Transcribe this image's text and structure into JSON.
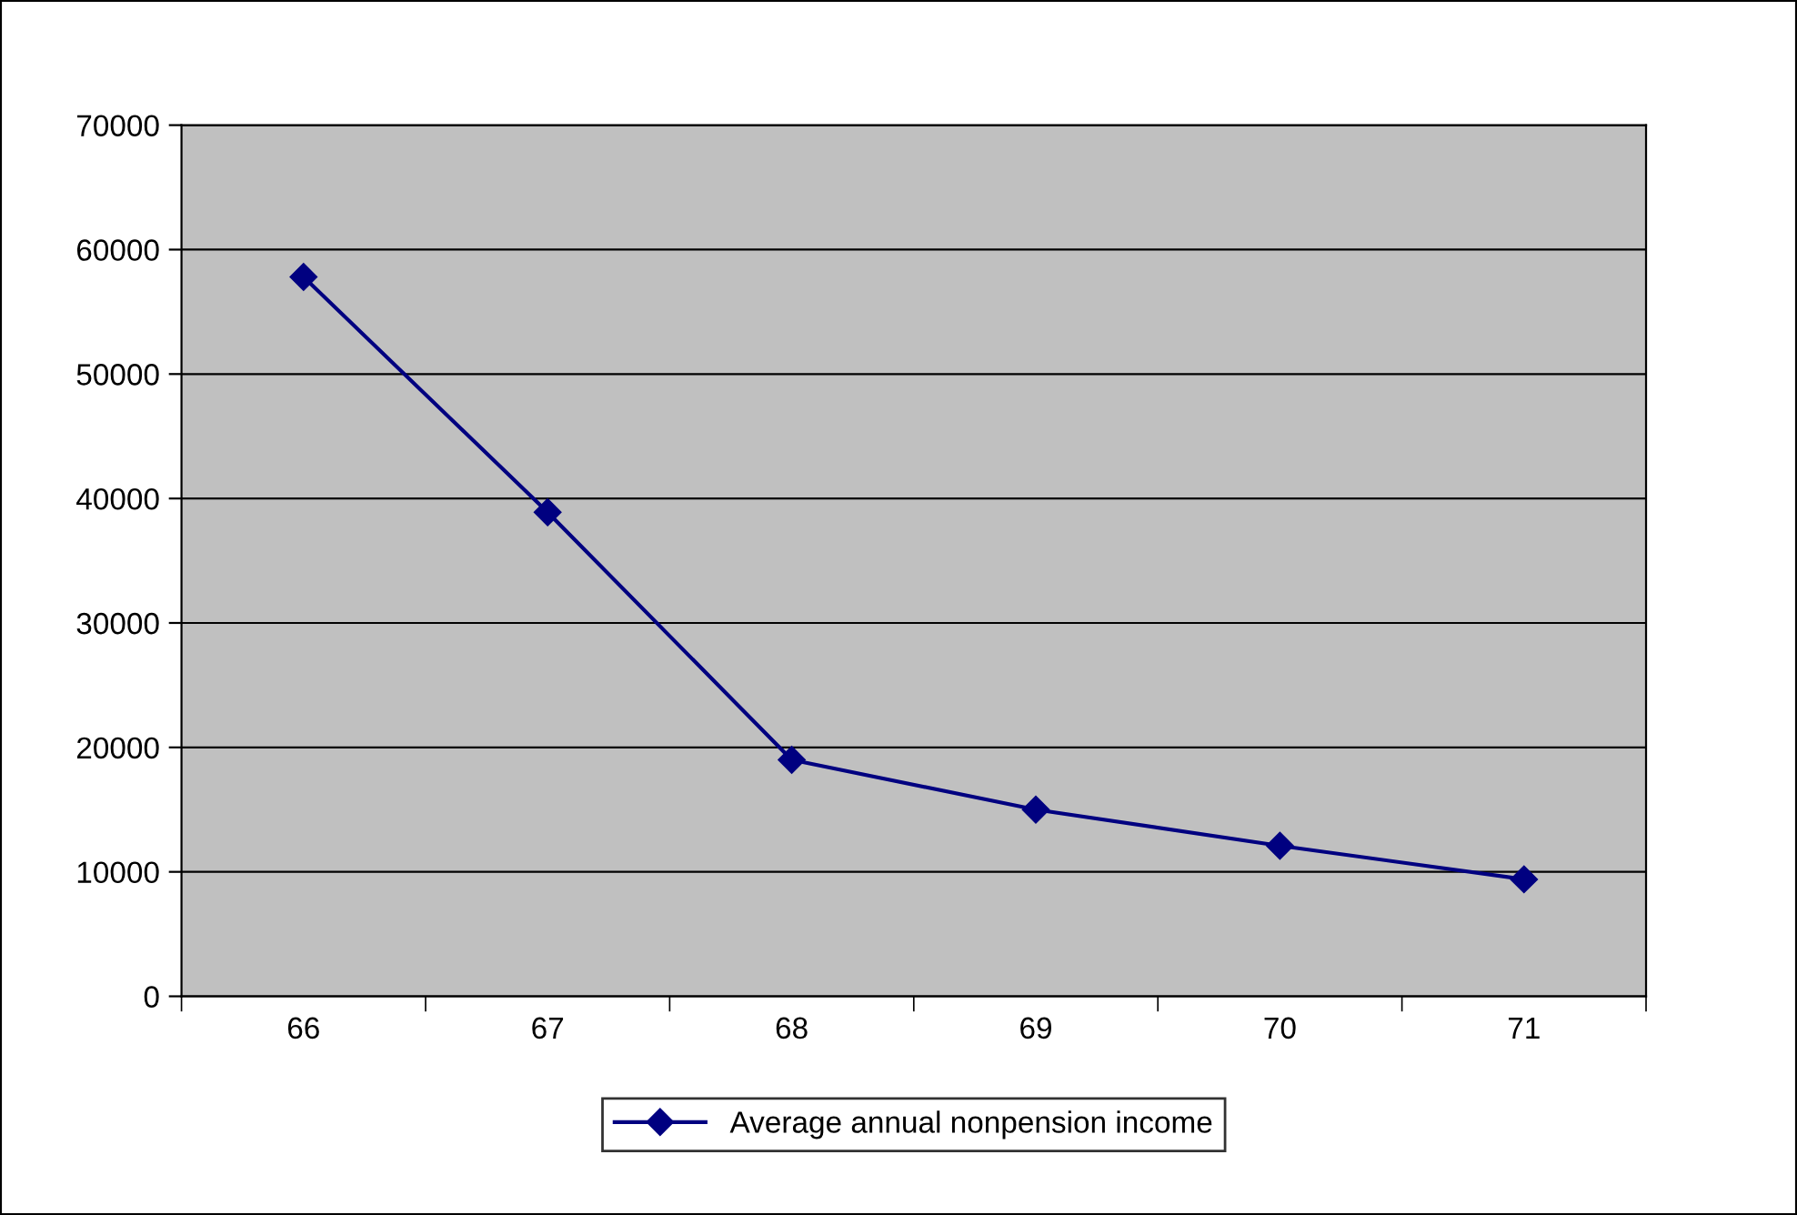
{
  "chart_data": {
    "type": "line",
    "categories": [
      "66",
      "67",
      "68",
      "69",
      "70",
      "71"
    ],
    "series": [
      {
        "name": "Average annual nonpension income",
        "color": "#000080",
        "values": [
          57800,
          38900,
          19000,
          15000,
          12100,
          9400
        ]
      }
    ],
    "ylim": [
      0,
      70000
    ],
    "yticks": [
      0,
      10000,
      20000,
      30000,
      40000,
      50000,
      60000,
      70000
    ],
    "grid": "y",
    "legend": "bottom",
    "marker": "diamond",
    "line_style": "solid"
  }
}
